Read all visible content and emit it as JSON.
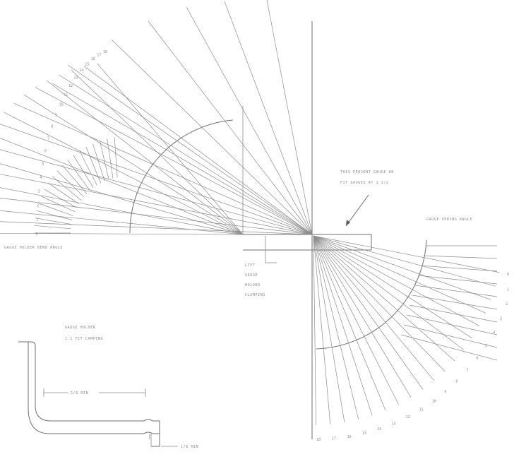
{
  "labels": {
    "left_scale": "GAUGE HOLDER BEND ANGLE",
    "right_scale": "GAUGE SPRING ANGLE",
    "note_top": "THIS PRESENT GAUGE WE",
    "note_bottom": "FIT GAUGES AT 1 1/2",
    "lift_1": "LIFT",
    "lift_2": "GAUGE",
    "lift_3": "HOLDER",
    "lift_4": "CLAMPING",
    "detail_title": "GAUGE HOLDER",
    "detail_sub": "1:1 FIT CAMPING",
    "dim_horizontal": "5/8 MIN",
    "dim_foot": "1/8 MIN"
  },
  "left_scale_ticks": [
    "0",
    "1",
    "2",
    "3",
    "4",
    "5",
    "6",
    "7",
    "8",
    "9",
    "10",
    "11",
    "12",
    "13",
    "14",
    "15",
    "16",
    "17",
    "18"
  ],
  "right_scale_ticks": [
    "0",
    "1",
    "2",
    "3",
    "4",
    "5",
    "6",
    "7",
    "8",
    "9",
    "10",
    "11",
    "12",
    "13",
    "14",
    "15",
    "16",
    "17",
    "18"
  ]
}
